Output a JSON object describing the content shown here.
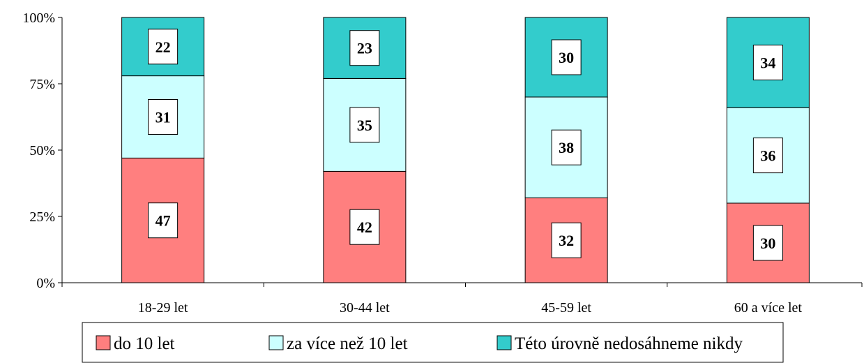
{
  "chart_data": {
    "type": "bar",
    "stacked": true,
    "percent_stacked": true,
    "categories": [
      "18-29 let",
      "30-44 let",
      "45-59 let",
      "60 a více let"
    ],
    "series": [
      {
        "name": "do 10 let",
        "values": [
          47,
          42,
          32,
          30
        ],
        "color": "#ff7f7f"
      },
      {
        "name": "za více než 10 let",
        "values": [
          31,
          35,
          38,
          36
        ],
        "color": "#ccffff"
      },
      {
        "name": "Této úrovně nedosáhneme nikdy",
        "values": [
          22,
          23,
          30,
          34
        ],
        "color": "#33cccc"
      }
    ],
    "yticks": [
      "0%",
      "25%",
      "50%",
      "75%",
      "100%"
    ],
    "ylim": [
      0,
      100
    ],
    "title": "",
    "xlabel": "",
    "ylabel": "",
    "legend_position": "bottom",
    "grid": false
  }
}
